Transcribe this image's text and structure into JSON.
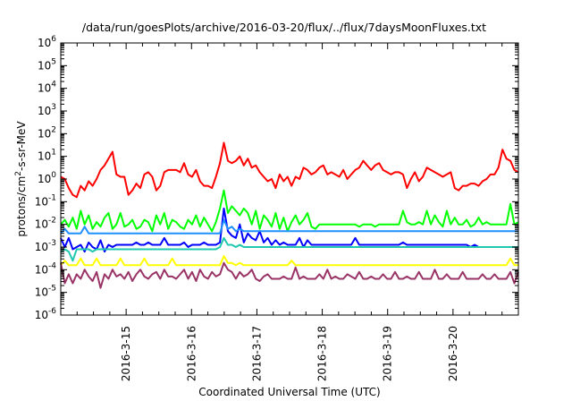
{
  "chart_data": {
    "type": "line",
    "title": "/data/run/goesPlots/archive/2016-03-20/flux/../flux/7daysMoonFluxes.txt",
    "xlabel": "Coordinated Universal Time (UTC)",
    "ylabel": "protons/cm²-s-sr-MeV",
    "yscale": "log",
    "ylim": [
      1e-06,
      1000000.0
    ],
    "xlim": [
      0,
      7
    ],
    "grid": false,
    "legend": "none",
    "y_ticks": [
      {
        "base": "10",
        "exp": "-6"
      },
      {
        "base": "10",
        "exp": "-5"
      },
      {
        "base": "10",
        "exp": "-4"
      },
      {
        "base": "10",
        "exp": "-3"
      },
      {
        "base": "10",
        "exp": "-2"
      },
      {
        "base": "10",
        "exp": "-1"
      },
      {
        "base": "10",
        "exp": "0"
      },
      {
        "base": "10",
        "exp": "1"
      },
      {
        "base": "10",
        "exp": "2"
      },
      {
        "base": "10",
        "exp": "3"
      },
      {
        "base": "10",
        "exp": "4"
      },
      {
        "base": "10",
        "exp": "5"
      },
      {
        "base": "10",
        "exp": "6"
      }
    ],
    "x_ticks": [
      {
        "label": "2016-3-15",
        "value": 1
      },
      {
        "label": "2016-3-16",
        "value": 2
      },
      {
        "label": "2016-3-17",
        "value": 3
      },
      {
        "label": "2016-3-18",
        "value": 4
      },
      {
        "label": "2016-3-19",
        "value": 5
      },
      {
        "label": "2016-3-20",
        "value": 6
      }
    ],
    "series": [
      {
        "color": "#ff0000",
        "log10_values": [
          0.1,
          0.0,
          -0.4,
          -0.7,
          -0.8,
          -0.3,
          -0.5,
          -0.1,
          -0.3,
          0.0,
          0.4,
          0.6,
          0.9,
          1.2,
          0.2,
          0.1,
          0.1,
          -0.7,
          -0.5,
          -0.2,
          -0.4,
          0.2,
          0.3,
          0.1,
          -0.5,
          -0.3,
          0.3,
          0.4,
          0.4,
          0.4,
          0.3,
          0.7,
          0.2,
          0.1,
          0.4,
          -0.1,
          -0.3,
          -0.3,
          -0.4,
          0.1,
          0.7,
          1.6,
          0.8,
          0.7,
          0.8,
          1.0,
          0.6,
          0.9,
          0.5,
          0.6,
          0.3,
          0.1,
          -0.1,
          0.0,
          -0.4,
          0.2,
          -0.1,
          0.1,
          -0.3,
          0.1,
          0.0,
          0.5,
          0.4,
          0.2,
          0.3,
          0.5,
          0.6,
          0.2,
          0.3,
          0.2,
          0.1,
          0.4,
          0.0,
          0.2,
          0.4,
          0.5,
          0.8,
          0.6,
          0.4,
          0.6,
          0.7,
          0.4,
          0.3,
          0.2,
          0.3,
          0.3,
          0.2,
          -0.4,
          0.0,
          0.3,
          -0.1,
          0.1,
          0.5,
          0.4,
          0.3,
          0.2,
          0.1,
          0.2,
          0.3,
          -0.4,
          -0.5,
          -0.3,
          -0.3,
          -0.2,
          -0.2,
          -0.3,
          -0.1,
          0.0,
          0.2,
          0.2,
          0.5,
          1.3,
          0.9,
          0.8,
          0.4,
          0.3
        ]
      },
      {
        "color": "#00ff00",
        "log10_values": [
          -2.0,
          -1.8,
          -2.1,
          -1.7,
          -2.2,
          -1.4,
          -2.0,
          -1.6,
          -2.2,
          -1.9,
          -2.1,
          -1.7,
          -1.5,
          -2.2,
          -2.0,
          -1.5,
          -2.1,
          -2.0,
          -1.8,
          -2.2,
          -2.1,
          -1.8,
          -1.9,
          -2.3,
          -1.6,
          -2.0,
          -1.5,
          -2.2,
          -1.8,
          -1.9,
          -2.1,
          -2.2,
          -1.8,
          -2.0,
          -1.6,
          -2.1,
          -1.7,
          -2.0,
          -2.3,
          -1.9,
          -1.3,
          -0.5,
          -1.5,
          -1.2,
          -1.4,
          -1.6,
          -1.3,
          -1.5,
          -2.0,
          -1.4,
          -2.2,
          -1.6,
          -1.8,
          -2.1,
          -1.5,
          -2.2,
          -1.7,
          -2.3,
          -1.9,
          -1.6,
          -2.0,
          -1.8,
          -1.5,
          -2.1,
          -2.2,
          -2.0,
          -2.0,
          -2.0,
          -2.0,
          -2.0,
          -2.0,
          -2.0,
          -2.0,
          -2.0,
          -2.0,
          -2.1,
          -2.0,
          -2.0,
          -2.0,
          -2.1,
          -2.0,
          -2.0,
          -2.0,
          -2.0,
          -2.0,
          -2.0,
          -1.4,
          -1.9,
          -2.0,
          -2.0,
          -1.9,
          -2.0,
          -1.4,
          -2.0,
          -1.6,
          -1.9,
          -2.1,
          -1.4,
          -2.0,
          -1.7,
          -2.0,
          -2.0,
          -1.8,
          -2.1,
          -2.0,
          -1.7,
          -2.0,
          -1.9,
          -2.0,
          -2.0,
          -2.0,
          -2.0,
          -2.0,
          -1.1,
          -2.0,
          -1.9
        ]
      },
      {
        "color": "#0000ff",
        "log10_values": [
          -2.6,
          -3.0,
          -2.6,
          -3.1,
          -3.0,
          -2.9,
          -3.2,
          -2.8,
          -3.0,
          -3.1,
          -2.7,
          -3.2,
          -2.9,
          -3.0,
          -2.9,
          -2.9,
          -2.9,
          -2.9,
          -2.9,
          -2.8,
          -2.9,
          -2.9,
          -2.8,
          -2.9,
          -2.9,
          -2.9,
          -2.6,
          -2.9,
          -2.9,
          -2.9,
          -2.9,
          -2.8,
          -3.0,
          -2.9,
          -2.9,
          -2.9,
          -2.8,
          -2.9,
          -2.9,
          -2.9,
          -2.8,
          -1.3,
          -2.3,
          -2.5,
          -2.6,
          -2.0,
          -2.8,
          -2.4,
          -2.6,
          -2.7,
          -2.3,
          -2.8,
          -2.6,
          -2.9,
          -2.7,
          -2.9,
          -2.8,
          -2.9,
          -2.9,
          -2.9,
          -2.6,
          -3.0,
          -2.7,
          -2.9,
          -2.9,
          -2.9,
          -2.9,
          -2.9,
          -2.9,
          -2.9,
          -2.9,
          -2.9,
          -2.9,
          -2.9,
          -2.6,
          -2.9,
          -2.9,
          -2.9,
          -2.9,
          -2.9,
          -2.9,
          -2.9,
          -2.9,
          -2.9,
          -2.9,
          -2.9,
          -2.8,
          -2.9,
          -2.9,
          -2.9,
          -2.9,
          -2.9,
          -2.9,
          -2.9,
          -2.9,
          -2.9,
          -2.9,
          -2.9,
          -2.9,
          -2.9,
          -2.9,
          -2.9,
          -2.9,
          -3.0,
          -2.9,
          -3.0,
          -3.0,
          -3.0,
          -3.0,
          -3.0,
          -3.0,
          -3.0,
          -3.0,
          -3.0,
          -3.0,
          -3.0
        ]
      },
      {
        "color": "#1e90ff",
        "log10_values": [
          -2.4,
          -2.2,
          -2.4,
          -2.4,
          -2.4,
          -2.4,
          -2.1,
          -2.4,
          -2.4,
          -2.4,
          -2.4,
          -2.4,
          -2.4,
          -2.4,
          -2.4,
          -2.4,
          -2.4,
          -2.4,
          -2.4,
          -2.4,
          -2.4,
          -2.4,
          -2.4,
          -2.4,
          -2.4,
          -2.4,
          -2.4,
          -2.4,
          -2.4,
          -2.4,
          -2.4,
          -2.4,
          -2.4,
          -2.4,
          -2.4,
          -2.4,
          -2.4,
          -2.4,
          -2.4,
          -2.4,
          -2.4,
          -1.8,
          -2.2,
          -2.1,
          -2.3,
          -2.2,
          -2.3,
          -2.3,
          -2.3,
          -2.3,
          -2.3,
          -2.3,
          -2.3,
          -2.3,
          -2.3,
          -2.3,
          -2.3,
          -2.3,
          -2.3,
          -2.3,
          -2.3,
          -2.3,
          -2.3,
          -2.3,
          -2.3,
          -2.3,
          -2.3,
          -2.3,
          -2.3,
          -2.3,
          -2.3,
          -2.3,
          -2.3,
          -2.3,
          -2.3,
          -2.3,
          -2.3,
          -2.3,
          -2.3,
          -2.3,
          -2.3,
          -2.3,
          -2.3,
          -2.3,
          -2.3,
          -2.3,
          -2.3,
          -2.3,
          -2.3,
          -2.3,
          -2.3,
          -2.3,
          -2.3,
          -2.3,
          -2.3,
          -2.3,
          -2.3,
          -2.3,
          -2.3,
          -2.3,
          -2.3,
          -2.3,
          -2.3,
          -2.3,
          -2.3,
          -2.3,
          -2.3,
          -2.3,
          -2.3,
          -2.3,
          -2.3,
          -2.3,
          -2.3,
          -2.3,
          -2.3,
          -2.3
        ]
      },
      {
        "color": "#20c8b0",
        "log10_values": [
          -3.2,
          -3.1,
          -3.2,
          -3.6,
          -3.1,
          -3.1,
          -3.1,
          -3.1,
          -3.2,
          -3.1,
          -3.1,
          -3.1,
          -3.1,
          -3.1,
          -3.1,
          -3.1,
          -3.1,
          -3.1,
          -3.1,
          -3.1,
          -3.1,
          -3.1,
          -3.1,
          -3.1,
          -3.1,
          -3.1,
          -3.1,
          -3.1,
          -3.1,
          -3.1,
          -3.1,
          -3.1,
          -3.1,
          -3.1,
          -3.1,
          -3.1,
          -3.1,
          -3.1,
          -3.1,
          -3.1,
          -3.0,
          -2.6,
          -2.9,
          -2.9,
          -3.0,
          -2.9,
          -3.0,
          -3.0,
          -3.0,
          -3.0,
          -3.0,
          -3.0,
          -3.0,
          -3.0,
          -3.0,
          -3.0,
          -3.0,
          -3.0,
          -3.0,
          -3.0,
          -3.0,
          -3.0,
          -3.0,
          -3.0,
          -3.0,
          -3.0,
          -3.0,
          -3.0,
          -3.0,
          -3.0,
          -3.0,
          -3.0,
          -3.0,
          -3.0,
          -3.0,
          -3.0,
          -3.0,
          -3.0,
          -3.0,
          -3.0,
          -3.0,
          -3.0,
          -3.0,
          -3.0,
          -3.0,
          -3.0,
          -3.0,
          -3.0,
          -3.0,
          -3.0,
          -3.0,
          -3.0,
          -3.0,
          -3.0,
          -3.0,
          -3.0,
          -3.0,
          -3.0,
          -3.0,
          -3.0,
          -3.0,
          -3.0,
          -3.0,
          -3.0,
          -3.0,
          -3.0,
          -3.0,
          -3.0,
          -3.0,
          -3.0,
          -3.0,
          -3.0,
          -3.0,
          -3.0,
          -3.0,
          -3.0
        ]
      },
      {
        "color": "#ffff00",
        "log10_values": [
          -3.8,
          -3.6,
          -3.8,
          -3.8,
          -3.8,
          -3.5,
          -3.8,
          -3.8,
          -3.8,
          -3.5,
          -3.8,
          -3.8,
          -3.8,
          -3.8,
          -3.8,
          -3.5,
          -3.8,
          -3.8,
          -3.8,
          -3.8,
          -3.8,
          -3.5,
          -3.8,
          -3.8,
          -3.8,
          -3.8,
          -3.8,
          -3.8,
          -3.5,
          -3.8,
          -3.8,
          -3.8,
          -3.8,
          -3.8,
          -3.8,
          -3.8,
          -3.8,
          -3.8,
          -3.8,
          -3.8,
          -3.8,
          -3.4,
          -3.7,
          -3.7,
          -3.8,
          -3.7,
          -3.8,
          -3.8,
          -3.8,
          -3.8,
          -3.8,
          -3.8,
          -3.8,
          -3.8,
          -3.8,
          -3.8,
          -3.8,
          -3.8,
          -3.6,
          -3.8,
          -3.8,
          -3.8,
          -3.8,
          -3.8,
          -3.8,
          -3.8,
          -3.8,
          -3.8,
          -3.8,
          -3.8,
          -3.8,
          -3.8,
          -3.8,
          -3.8,
          -3.8,
          -3.8,
          -3.8,
          -3.8,
          -3.8,
          -3.8,
          -3.8,
          -3.8,
          -3.8,
          -3.8,
          -3.8,
          -3.8,
          -3.8,
          -3.8,
          -3.8,
          -3.8,
          -3.8,
          -3.8,
          -3.8,
          -3.8,
          -3.8,
          -3.8,
          -3.8,
          -3.8,
          -3.8,
          -3.8,
          -3.8,
          -3.8,
          -3.8,
          -3.8,
          -3.8,
          -3.8,
          -3.8,
          -3.8,
          -3.8,
          -3.8,
          -3.8,
          -3.8,
          -3.8,
          -3.5,
          -3.8,
          -3.8
        ]
      },
      {
        "color": "#993366",
        "log10_values": [
          -3.7,
          -4.6,
          -4.2,
          -4.6,
          -4.2,
          -4.4,
          -4.0,
          -4.3,
          -4.5,
          -4.1,
          -4.8,
          -4.2,
          -4.4,
          -4.0,
          -4.3,
          -4.2,
          -4.4,
          -4.1,
          -4.5,
          -4.2,
          -4.0,
          -4.3,
          -4.4,
          -4.2,
          -4.1,
          -4.4,
          -4.0,
          -4.3,
          -4.3,
          -4.4,
          -4.2,
          -4.0,
          -4.4,
          -4.1,
          -4.5,
          -4.0,
          -4.3,
          -4.4,
          -4.1,
          -4.3,
          -4.2,
          -3.7,
          -4.0,
          -4.1,
          -4.4,
          -4.1,
          -4.3,
          -4.2,
          -4.0,
          -4.4,
          -4.5,
          -4.3,
          -4.2,
          -4.4,
          -4.4,
          -4.4,
          -4.3,
          -4.4,
          -4.4,
          -3.9,
          -4.4,
          -4.3,
          -4.4,
          -4.4,
          -4.4,
          -4.2,
          -4.4,
          -4.0,
          -4.4,
          -4.3,
          -4.4,
          -4.4,
          -4.2,
          -4.3,
          -4.4,
          -4.1,
          -4.4,
          -4.4,
          -4.3,
          -4.4,
          -4.4,
          -4.2,
          -4.4,
          -4.4,
          -4.1,
          -4.4,
          -4.4,
          -4.3,
          -4.4,
          -4.4,
          -4.1,
          -4.4,
          -4.4,
          -4.4,
          -4.0,
          -4.4,
          -4.4,
          -4.2,
          -4.4,
          -4.4,
          -4.4,
          -4.1,
          -4.4,
          -4.4,
          -4.4,
          -4.4,
          -4.2,
          -4.4,
          -4.4,
          -4.2,
          -4.4,
          -4.4,
          -4.4,
          -4.1,
          -4.6,
          -4.1
        ]
      }
    ]
  }
}
